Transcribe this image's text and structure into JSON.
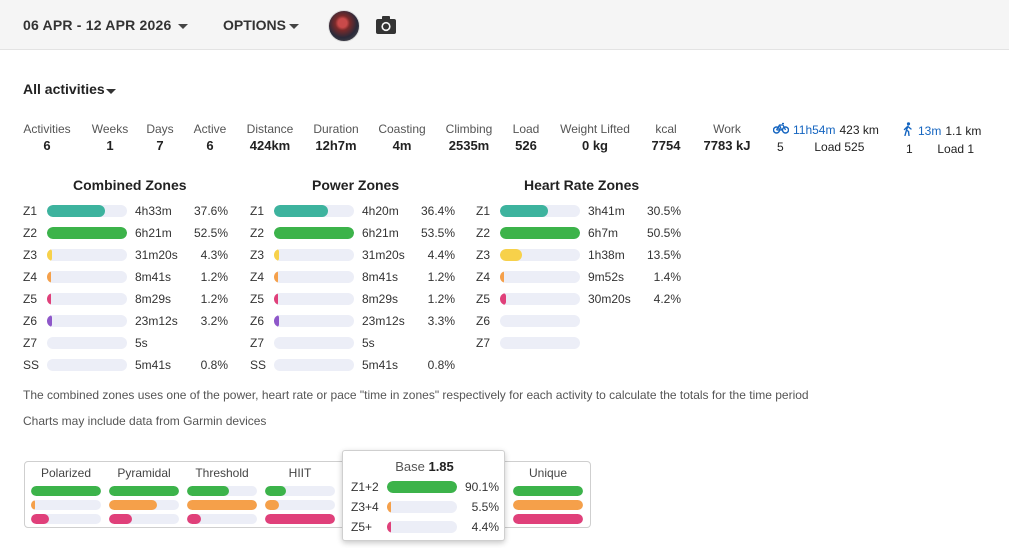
{
  "header": {
    "date_range": "06 APR - 12 APR 2026",
    "options_label": "OPTIONS",
    "avatar_icon": "user-avatar",
    "camera_icon": "camera-icon"
  },
  "filter": {
    "label": "All activities"
  },
  "summary": [
    {
      "label": "Activities",
      "value": "6"
    },
    {
      "label": "Weeks",
      "value": "1"
    },
    {
      "label": "Days",
      "value": "7"
    },
    {
      "label": "Active",
      "value": "6"
    },
    {
      "label": "Distance",
      "value": "424km"
    },
    {
      "label": "Duration",
      "value": "12h7m"
    },
    {
      "label": "Coasting",
      "value": "4m"
    },
    {
      "label": "Climbing",
      "value": "2535m"
    },
    {
      "label": "Load",
      "value": "526"
    },
    {
      "label": "Weight Lifted",
      "value": "0 kg"
    },
    {
      "label": "kcal",
      "value": "7754"
    },
    {
      "label": "Work",
      "value": "7783 kJ"
    }
  ],
  "activity_types": [
    {
      "icon": "bike-icon",
      "time": "11h54m",
      "distance": "423 km",
      "count": "5",
      "load": "Load 525"
    },
    {
      "icon": "walk-icon",
      "time": "13m",
      "distance": "1.1 km",
      "count": "1",
      "load": "Load 1"
    }
  ],
  "colors": {
    "z1": "#3db39e",
    "z2": "#3cb34a",
    "z3": "#f7d14a",
    "z4": "#f5a04a",
    "z5": "#e0407a",
    "z6": "#8e57c9",
    "track": "#eceef7",
    "link_blue": "#1565c0"
  },
  "zones": {
    "combined": {
      "title": "Combined Zones",
      "rows": [
        {
          "zone": "Z1",
          "time": "4h33m",
          "pct": "37.6%",
          "fill": 0.72,
          "color": "#3db39e"
        },
        {
          "zone": "Z2",
          "time": "6h21m",
          "pct": "52.5%",
          "fill": 1.0,
          "color": "#3cb34a"
        },
        {
          "zone": "Z3",
          "time": "31m20s",
          "pct": "4.3%",
          "fill": 0.06,
          "color": "#f7d14a"
        },
        {
          "zone": "Z4",
          "time": "8m41s",
          "pct": "1.2%",
          "fill": 0.03,
          "color": "#f5a04a"
        },
        {
          "zone": "Z5",
          "time": "8m29s",
          "pct": "1.2%",
          "fill": 0.03,
          "color": "#e0407a"
        },
        {
          "zone": "Z6",
          "time": "23m12s",
          "pct": "3.2%",
          "fill": 0.06,
          "color": "#8e57c9"
        },
        {
          "zone": "Z7",
          "time": "5s",
          "pct": "",
          "fill": 0.0,
          "color": "#8e57c9"
        },
        {
          "zone": "SS",
          "time": "5m41s",
          "pct": "0.8%",
          "fill": 0.0,
          "color": "#3cb34a"
        }
      ]
    },
    "power": {
      "title": "Power Zones",
      "rows": [
        {
          "zone": "Z1",
          "time": "4h20m",
          "pct": "36.4%",
          "fill": 0.67,
          "color": "#3db39e"
        },
        {
          "zone": "Z2",
          "time": "6h21m",
          "pct": "53.5%",
          "fill": 1.0,
          "color": "#3cb34a"
        },
        {
          "zone": "Z3",
          "time": "31m20s",
          "pct": "4.4%",
          "fill": 0.06,
          "color": "#f7d14a"
        },
        {
          "zone": "Z4",
          "time": "8m41s",
          "pct": "1.2%",
          "fill": 0.03,
          "color": "#f5a04a"
        },
        {
          "zone": "Z5",
          "time": "8m29s",
          "pct": "1.2%",
          "fill": 0.03,
          "color": "#e0407a"
        },
        {
          "zone": "Z6",
          "time": "23m12s",
          "pct": "3.3%",
          "fill": 0.06,
          "color": "#8e57c9"
        },
        {
          "zone": "Z7",
          "time": "5s",
          "pct": "",
          "fill": 0.0,
          "color": "#8e57c9"
        },
        {
          "zone": "SS",
          "time": "5m41s",
          "pct": "0.8%",
          "fill": 0.0,
          "color": "#3cb34a"
        }
      ]
    },
    "heart_rate": {
      "title": "Heart Rate Zones",
      "rows": [
        {
          "zone": "Z1",
          "time": "3h41m",
          "pct": "30.5%",
          "fill": 0.6,
          "color": "#3db39e"
        },
        {
          "zone": "Z2",
          "time": "6h7m",
          "pct": "50.5%",
          "fill": 1.0,
          "color": "#3cb34a"
        },
        {
          "zone": "Z3",
          "time": "1h38m",
          "pct": "13.5%",
          "fill": 0.27,
          "color": "#f7d14a"
        },
        {
          "zone": "Z4",
          "time": "9m52s",
          "pct": "1.4%",
          "fill": 0.03,
          "color": "#f5a04a"
        },
        {
          "zone": "Z5",
          "time": "30m20s",
          "pct": "4.2%",
          "fill": 0.08,
          "color": "#e0407a"
        },
        {
          "zone": "Z6",
          "time": "",
          "pct": "",
          "fill": 0.0,
          "color": "#8e57c9"
        },
        {
          "zone": "Z7",
          "time": "",
          "pct": "",
          "fill": 0.0,
          "color": "#8e57c9"
        }
      ]
    }
  },
  "notes": {
    "combined_note": "The combined zones uses one of the power, heart rate or pace \"time in zones\" respectively for each activity to calculate the totals for the time period",
    "garmin_note": "Charts may include data from Garmin devices"
  },
  "distribution": [
    {
      "label": "Polarized",
      "bars": [
        {
          "fill": 1.0,
          "color": "#3cb34a"
        },
        {
          "fill": 0.06,
          "color": "#f5a04a"
        },
        {
          "fill": 0.25,
          "color": "#e0407a"
        }
      ]
    },
    {
      "label": "Pyramidal",
      "bars": [
        {
          "fill": 1.0,
          "color": "#3cb34a"
        },
        {
          "fill": 0.68,
          "color": "#f5a04a"
        },
        {
          "fill": 0.33,
          "color": "#e0407a"
        }
      ]
    },
    {
      "label": "Threshold",
      "bars": [
        {
          "fill": 0.6,
          "color": "#3cb34a"
        },
        {
          "fill": 1.0,
          "color": "#f5a04a"
        },
        {
          "fill": 0.2,
          "color": "#e0407a"
        }
      ]
    },
    {
      "label": "HIIT",
      "bars": [
        {
          "fill": 0.3,
          "color": "#3cb34a"
        },
        {
          "fill": 0.2,
          "color": "#f5a04a"
        },
        {
          "fill": 1.0,
          "color": "#e0407a"
        }
      ]
    },
    {
      "label": "Unique",
      "bars": [
        {
          "fill": 1.0,
          "color": "#3cb34a"
        },
        {
          "fill": 1.0,
          "color": "#f5a04a"
        },
        {
          "fill": 1.0,
          "color": "#e0407a"
        }
      ]
    }
  ],
  "popup": {
    "title_label": "Base",
    "title_value": "1.85",
    "rows": [
      {
        "label": "Z1+2",
        "pct": "90.1%",
        "fill": 1.0,
        "color": "#3cb34a"
      },
      {
        "label": "Z3+4",
        "pct": "5.5%",
        "fill": 0.06,
        "color": "#f5a04a"
      },
      {
        "label": "Z5+",
        "pct": "4.4%",
        "fill": 0.05,
        "color": "#e0407a"
      }
    ]
  }
}
